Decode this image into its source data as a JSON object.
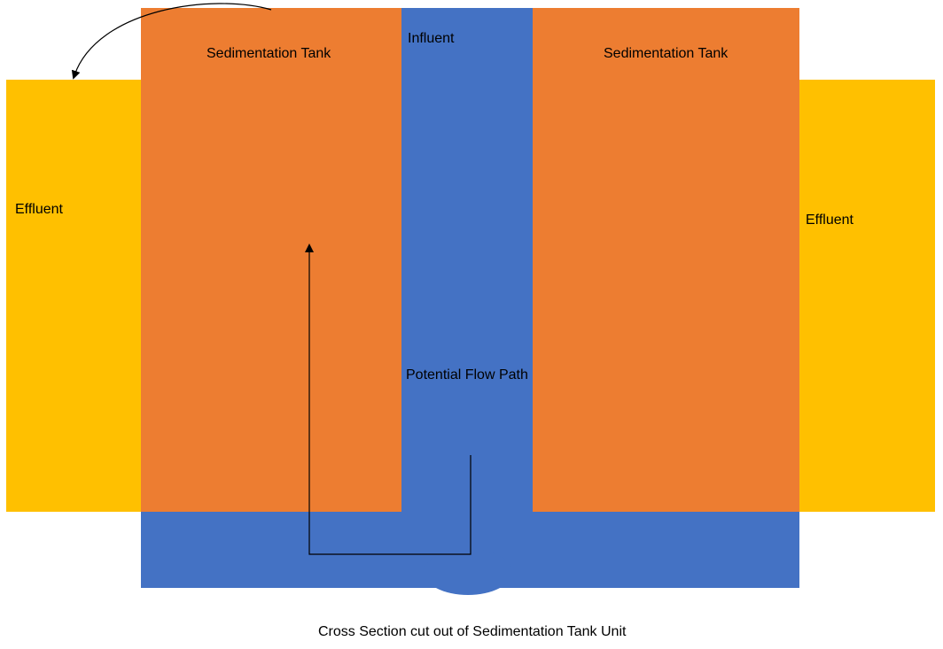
{
  "colors": {
    "tank": "#ED7D31",
    "water": "#4472C4",
    "effluent": "#FFC000",
    "arrow": "#000000"
  },
  "labels": {
    "tank_left": "Sedimentation Tank",
    "tank_right": "Sedimentation Tank",
    "influent": "Influent",
    "effluent_left": "Effluent",
    "effluent_right": "Effluent",
    "flow_path": "Potential Flow Path",
    "caption": "Cross Section cut out of Sedimentation Tank Unit"
  }
}
